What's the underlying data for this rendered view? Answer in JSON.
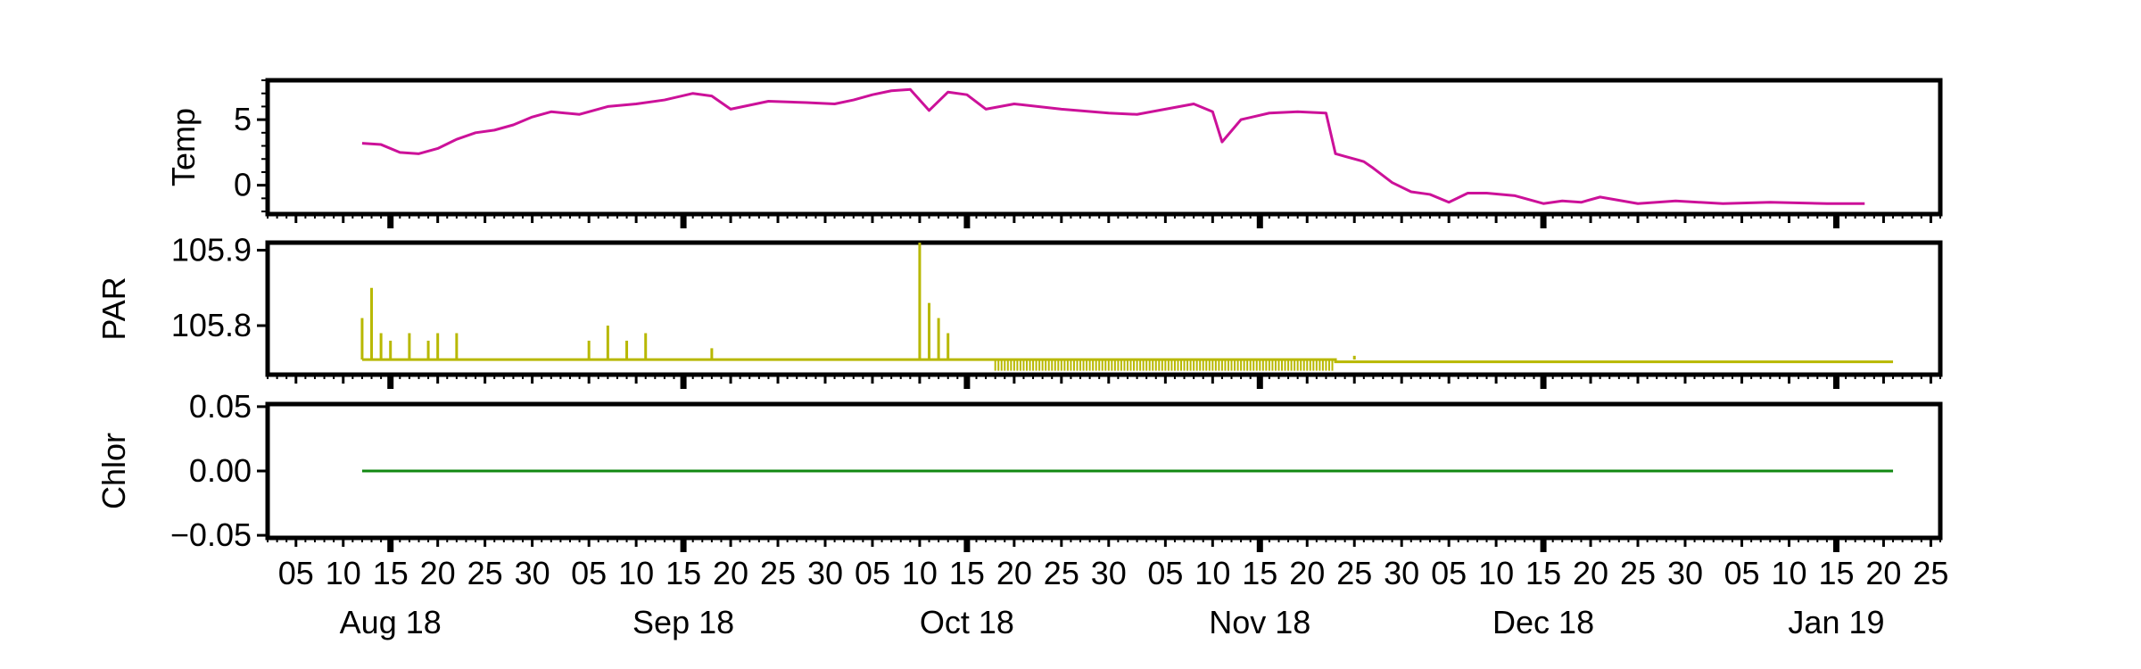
{
  "chart_data": {
    "type": "line",
    "x_axis": {
      "type": "date",
      "range": [
        "2018-08-02",
        "2019-01-26"
      ],
      "day_tick_labels": [
        "05",
        "10",
        "15",
        "20",
        "25",
        "30",
        "05",
        "10",
        "15",
        "20",
        "25",
        "30",
        "05",
        "10",
        "15",
        "20",
        "25",
        "30",
        "05",
        "10",
        "15",
        "20",
        "25",
        "30",
        "05",
        "10",
        "15",
        "20",
        "25",
        "30",
        "05",
        "10",
        "15",
        "20",
        "25"
      ],
      "month_labels": [
        {
          "date": "2018-08-15",
          "label": "Aug 18"
        },
        {
          "date": "2018-09-15",
          "label": "Sep 18"
        },
        {
          "date": "2018-10-15",
          "label": "Oct 18"
        },
        {
          "date": "2018-11-15",
          "label": "Nov 18"
        },
        {
          "date": "2018-12-15",
          "label": "Dec 18"
        },
        {
          "date": "2019-01-15",
          "label": "Jan 19"
        }
      ]
    },
    "panels": [
      {
        "ylabel": "Temp",
        "color": "#cc1199",
        "ylim": [
          -2.2,
          8.0
        ],
        "yticks": [
          0,
          5
        ],
        "ytick_labels": [
          "0",
          "5"
        ],
        "series": [
          {
            "x": [
              "2018-08-12",
              "2018-08-14",
              "2018-08-16",
              "2018-08-18",
              "2018-08-20",
              "2018-08-22",
              "2018-08-24",
              "2018-08-26",
              "2018-08-28",
              "2018-08-30",
              "2018-09-01",
              "2018-09-04",
              "2018-09-07",
              "2018-09-10",
              "2018-09-13",
              "2018-09-16",
              "2018-09-18",
              "2018-09-20",
              "2018-09-24",
              "2018-09-28",
              "2018-10-01",
              "2018-10-03",
              "2018-10-05",
              "2018-10-07",
              "2018-10-09",
              "2018-10-11",
              "2018-10-13",
              "2018-10-15",
              "2018-10-17",
              "2018-10-20",
              "2018-10-25",
              "2018-10-30",
              "2018-11-02",
              "2018-11-05",
              "2018-11-08",
              "2018-11-10",
              "2018-11-11",
              "2018-11-13",
              "2018-11-16",
              "2018-11-19",
              "2018-11-22",
              "2018-11-23",
              "2018-11-24",
              "2018-11-26",
              "2018-11-27",
              "2018-11-29",
              "2018-12-01",
              "2018-12-03",
              "2018-12-05",
              "2018-12-07",
              "2018-12-09",
              "2018-12-12",
              "2018-12-15",
              "2018-12-17",
              "2018-12-19",
              "2018-12-21",
              "2018-12-25",
              "2018-12-29",
              "2019-01-03",
              "2019-01-08",
              "2019-01-14",
              "2019-01-18"
            ],
            "y": [
              3.2,
              3.1,
              2.5,
              2.4,
              2.8,
              3.5,
              4.0,
              4.2,
              4.6,
              5.2,
              5.6,
              5.4,
              6.0,
              6.2,
              6.5,
              7.0,
              6.8,
              5.8,
              6.4,
              6.3,
              6.2,
              6.5,
              6.9,
              7.2,
              7.3,
              5.7,
              7.1,
              6.9,
              5.8,
              6.2,
              5.8,
              5.5,
              5.4,
              5.8,
              6.2,
              5.6,
              3.3,
              5.0,
              5.5,
              5.6,
              5.5,
              2.4,
              2.2,
              1.8,
              1.3,
              0.2,
              -0.5,
              -0.7,
              -1.3,
              -0.6,
              -0.6,
              -0.8,
              -1.4,
              -1.2,
              -1.3,
              -0.9,
              -1.4,
              -1.2,
              -1.4,
              -1.3,
              -1.4,
              -1.4
            ]
          }
        ]
      },
      {
        "ylabel": "PAR",
        "color": "#b8b800",
        "ylim": [
          105.735,
          105.91
        ],
        "yticks": [
          105.8,
          105.9
        ],
        "ytick_labels": [
          "105.8",
          "105.9"
        ],
        "baseline": 105.755,
        "baseline_after_shift": 105.752,
        "baseline_shift_date": "2018-11-23",
        "series": [
          {
            "x": [
              "2018-08-12",
              "2018-08-13",
              "2018-08-14",
              "2018-08-15",
              "2018-08-17",
              "2018-08-19",
              "2018-08-20",
              "2018-08-22",
              "2018-09-05",
              "2018-09-07",
              "2018-09-09",
              "2018-09-11",
              "2018-10-10",
              "2018-10-11",
              "2018-10-12",
              "2018-10-13",
              "2018-09-18",
              "2018-11-25"
            ],
            "y": [
              105.81,
              105.85,
              105.79,
              105.78,
              105.79,
              105.78,
              105.79,
              105.79,
              105.78,
              105.8,
              105.78,
              105.79,
              105.91,
              105.83,
              105.81,
              105.79,
              105.77,
              105.76
            ]
          }
        ]
      },
      {
        "ylabel": "Chlor",
        "color": "#118811",
        "ylim": [
          -0.052,
          0.052
        ],
        "yticks": [
          -0.05,
          0.0,
          0.05
        ],
        "ytick_labels": [
          "−0.05",
          "0.00",
          "0.05"
        ],
        "series": [
          {
            "x": [
              "2018-08-12",
              "2019-01-21"
            ],
            "y": [
              0.0,
              0.0
            ]
          }
        ]
      }
    ]
  }
}
